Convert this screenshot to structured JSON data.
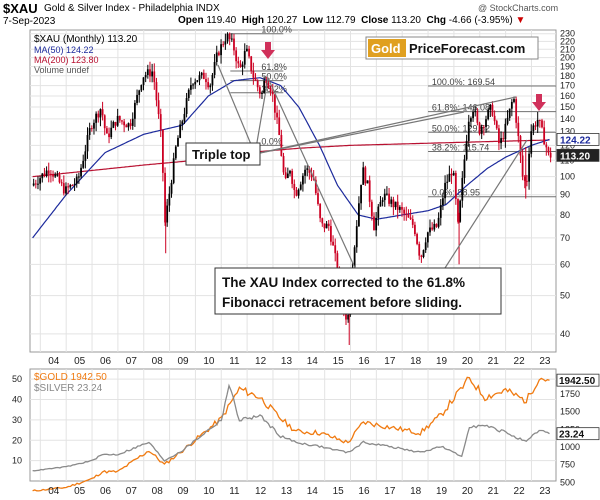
{
  "header": {
    "symbol": "$XAU",
    "name": "Gold & Silver Index - Philadelphia INDX",
    "date": "7-Sep-2023",
    "open_label": "Open",
    "open": "119.40",
    "high_label": "High",
    "high": "120.27",
    "low_label": "Low",
    "low": "112.79",
    "close_label": "Close",
    "close": "113.20",
    "chg_label": "Chg",
    "chg": "-4.66 (-3.95%)",
    "watermark": "@ StockCharts.com"
  },
  "brand": {
    "part1": "Gold",
    "part2": "PriceForecast.com"
  },
  "colors": {
    "candle_up": "#000000",
    "candle_down": "#cc0022",
    "ma50": "#1c2a9c",
    "ma200": "#b81030",
    "gold_line": "#f07a10",
    "silver_line": "#8a8a8a",
    "grid": "#e3e3e3",
    "fib": "#707070",
    "arrow": "#d0305a"
  },
  "chart_data": [
    {
      "type": "candlestick",
      "title": "$XAU (Monthly) 113.20",
      "legend": [
        {
          "label": "MA(50) 124.22",
          "color": "#1c2a9c"
        },
        {
          "label": "MA(200) 123.80",
          "color": "#b81030"
        },
        {
          "label": "Volume undef",
          "color": "#888888"
        }
      ],
      "scale": "log",
      "ylim": [
        36,
        235
      ],
      "xlim": [
        2003.6,
        2023.95
      ],
      "y_ticks": [
        "230",
        "220",
        "210",
        "200",
        "190",
        "180",
        "170",
        "160",
        "150",
        "140",
        "130",
        "120",
        "110",
        "100",
        "90",
        "80",
        "70",
        "60",
        "50",
        "40"
      ],
      "x_ticks": [
        "04",
        "05",
        "06",
        "07",
        "08",
        "09",
        "10",
        "11",
        "12",
        "13",
        "14",
        "15",
        "16",
        "17",
        "18",
        "19",
        "20",
        "21",
        "22",
        "23"
      ],
      "price_path": [
        [
          2003.7,
          95
        ],
        [
          2004.4,
          105
        ],
        [
          2005.0,
          92
        ],
        [
          2005.5,
          98
        ],
        [
          2006.0,
          135
        ],
        [
          2006.4,
          150
        ],
        [
          2006.6,
          125
        ],
        [
          2007.0,
          140
        ],
        [
          2007.5,
          135
        ],
        [
          2008.0,
          180
        ],
        [
          2008.4,
          185
        ],
        [
          2008.75,
          120
        ],
        [
          2008.85,
          75
        ],
        [
          2009.3,
          120
        ],
        [
          2009.9,
          175
        ],
        [
          2010.4,
          180
        ],
        [
          2010.6,
          170
        ],
        [
          2010.9,
          205
        ],
        [
          2011.25,
          228
        ],
        [
          2011.5,
          215
        ],
        [
          2011.75,
          185
        ],
        [
          2012.0,
          210
        ],
        [
          2012.3,
          178
        ],
        [
          2012.6,
          160
        ],
        [
          2012.75,
          180
        ],
        [
          2013.0,
          165
        ],
        [
          2013.3,
          125
        ],
        [
          2013.5,
          95
        ],
        [
          2013.7,
          105
        ],
        [
          2013.9,
          90
        ],
        [
          2014.3,
          105
        ],
        [
          2014.6,
          100
        ],
        [
          2014.9,
          75
        ],
        [
          2015.2,
          75
        ],
        [
          2015.5,
          60
        ],
        [
          2015.9,
          42
        ],
        [
          2016.0,
          50
        ],
        [
          2016.5,
          105
        ],
        [
          2016.7,
          95
        ],
        [
          2016.95,
          75
        ],
        [
          2017.3,
          90
        ],
        [
          2017.7,
          85
        ],
        [
          2018.0,
          82
        ],
        [
          2018.5,
          75
        ],
        [
          2018.75,
          62
        ],
        [
          2019.0,
          72
        ],
        [
          2019.4,
          75
        ],
        [
          2019.7,
          95
        ],
        [
          2020.0,
          105
        ],
        [
          2020.2,
          75
        ],
        [
          2020.6,
          140
        ],
        [
          2020.8,
          150
        ],
        [
          2021.0,
          130
        ],
        [
          2021.5,
          150
        ],
        [
          2021.8,
          120
        ],
        [
          2022.0,
          130
        ],
        [
          2022.35,
          160
        ],
        [
          2022.7,
          100
        ],
        [
          2022.85,
          95
        ],
        [
          2023.0,
          130
        ],
        [
          2023.3,
          140
        ],
        [
          2023.6,
          120
        ],
        [
          2023.7,
          113.2
        ]
      ],
      "ma50_path": [
        [
          2003.7,
          70
        ],
        [
          2005.0,
          90
        ],
        [
          2006.5,
          115
        ],
        [
          2008.0,
          128
        ],
        [
          2009.5,
          135
        ],
        [
          2010.5,
          160
        ],
        [
          2011.5,
          175
        ],
        [
          2012.5,
          178
        ],
        [
          2013.3,
          170
        ],
        [
          2014.0,
          150
        ],
        [
          2014.8,
          120
        ],
        [
          2015.5,
          95
        ],
        [
          2016.3,
          80
        ],
        [
          2017.0,
          78
        ],
        [
          2018.0,
          80
        ],
        [
          2019.0,
          82
        ],
        [
          2019.7,
          85
        ],
        [
          2020.5,
          95
        ],
        [
          2021.3,
          105
        ],
        [
          2022.0,
          112
        ],
        [
          2023.0,
          120
        ],
        [
          2023.7,
          124.22
        ]
      ],
      "ma200_path": [
        [
          2003.7,
          100
        ],
        [
          2008.0,
          107
        ],
        [
          2010.0,
          110
        ],
        [
          2012.0,
          115
        ],
        [
          2014.0,
          118
        ],
        [
          2016.0,
          120
        ],
        [
          2018.0,
          121
        ],
        [
          2020.0,
          122
        ],
        [
          2022.0,
          123
        ],
        [
          2023.7,
          123.8
        ]
      ],
      "fib_left": [
        {
          "label": "100.0%",
          "value": 230
        },
        {
          "label": "61.8%",
          "value": 185
        },
        {
          "label": "50.0%",
          "value": 175
        },
        {
          "label": "38.2%",
          "value": 163
        },
        {
          "label": "0.0%",
          "value": 120
        }
      ],
      "fib_right": [
        {
          "label": "100.0%: 169.54",
          "value": 169.54
        },
        {
          "label": "61.8%: 146.08",
          "value": 146.08
        },
        {
          "label": "50.0%: 129.52",
          "value": 129.52
        },
        {
          "label": "38.2%: 115.74",
          "value": 115.74
        },
        {
          "label": "0.0%: 88.95",
          "value": 88.95
        }
      ],
      "price_tags": [
        {
          "label": "124.22",
          "value": 124.22
        },
        {
          "label": "113.20",
          "value": 113.2
        }
      ],
      "annotations": [
        {
          "text": "Triple top"
        },
        {
          "text": "The XAU Index corrected to the 61.8%",
          "line": 1
        },
        {
          "text": "Fibonacci retracement before sliding.",
          "line": 2
        }
      ]
    },
    {
      "type": "line",
      "ylim_left": [
        0,
        55
      ],
      "ylim_right": [
        520,
        2100
      ],
      "left_ticks": [
        50,
        40,
        30,
        20,
        10
      ],
      "right_ticks": [
        1750,
        1500,
        1250,
        1000,
        750,
        500
      ],
      "xlim": [
        2003.6,
        2023.95
      ],
      "x_ticks": [
        "04",
        "05",
        "06",
        "07",
        "08",
        "09",
        "10",
        "11",
        "12",
        "13",
        "14",
        "15",
        "16",
        "17",
        "18",
        "19",
        "20",
        "21",
        "22",
        "23"
      ],
      "series": [
        {
          "name": "$GOLD 1942.50",
          "last_label": "1942.50",
          "scale": "right",
          "x": [
            2003.7,
            2005.0,
            2006.0,
            2006.4,
            2007.0,
            2008.2,
            2008.8,
            2009.5,
            2010.5,
            2011.0,
            2011.7,
            2012.5,
            2013.3,
            2013.9,
            2014.8,
            2015.9,
            2016.5,
            2017.5,
            2018.7,
            2019.5,
            2020.6,
            2021.2,
            2022.0,
            2022.8,
            2023.3,
            2023.7
          ],
          "y": [
            380,
            430,
            550,
            650,
            650,
            950,
            750,
            950,
            1250,
            1400,
            1820,
            1700,
            1400,
            1220,
            1200,
            1060,
            1350,
            1280,
            1200,
            1450,
            1970,
            1700,
            1800,
            1650,
            1980,
            1942.5
          ]
        },
        {
          "name": "$SILVER 23.24",
          "last_label": "23.24",
          "scale": "left",
          "x": [
            2003.7,
            2005.0,
            2006.0,
            2006.4,
            2007.0,
            2008.2,
            2008.8,
            2009.5,
            2010.5,
            2011.0,
            2011.3,
            2011.7,
            2012.5,
            2013.3,
            2013.9,
            2014.8,
            2015.9,
            2016.5,
            2017.5,
            2018.7,
            2019.5,
            2020.3,
            2020.6,
            2021.2,
            2022.0,
            2022.8,
            2023.3,
            2023.7
          ],
          "y": [
            5,
            7,
            10,
            13,
            13,
            19,
            10,
            15,
            25,
            30,
            47,
            30,
            32,
            22,
            19,
            17,
            14,
            19,
            17,
            14,
            17,
            12,
            27,
            27,
            24,
            19,
            25,
            23.24
          ]
        }
      ]
    }
  ]
}
